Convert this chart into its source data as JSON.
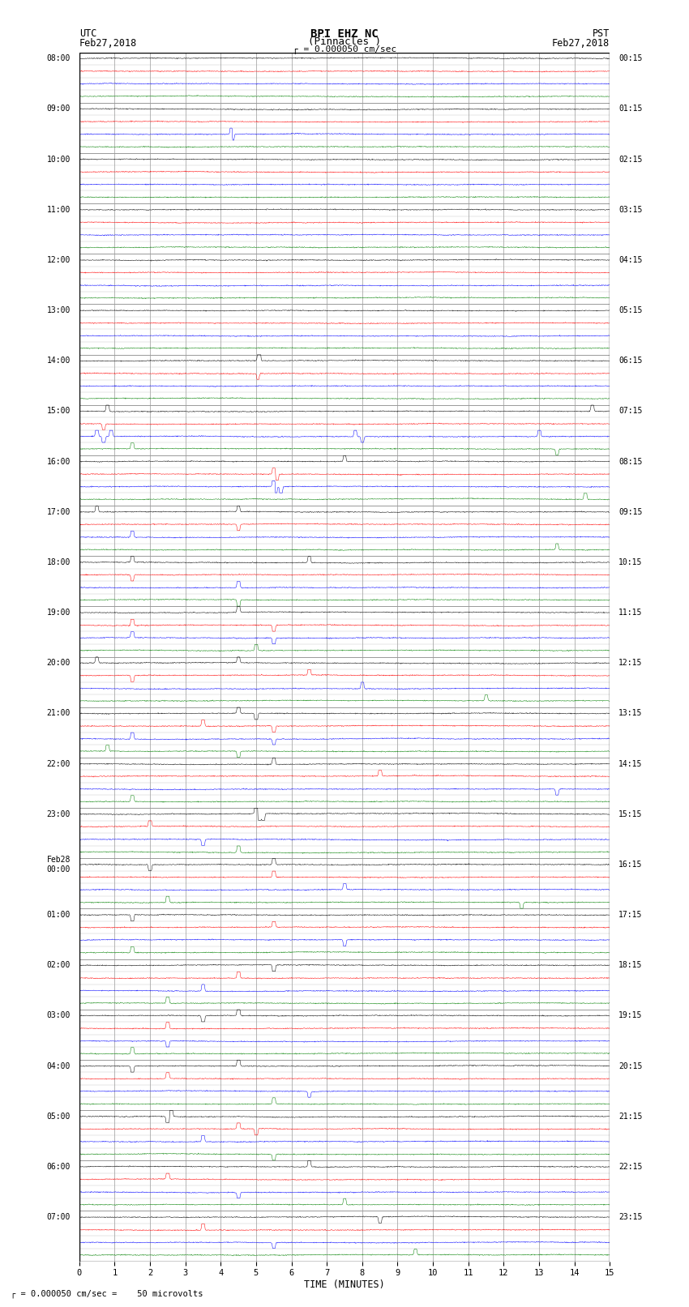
{
  "title_line1": "BPI EHZ NC",
  "title_line2": "(Pinnacles )",
  "scale_text": "= 0.000050 cm/sec",
  "left_label_top": "UTC",
  "left_label_date": "Feb27,2018",
  "right_label_top": "PST",
  "right_label_date": "Feb27,2018",
  "xlabel": "TIME (MINUTES)",
  "footnote": "= 0.000050 cm/sec =    50 microvolts",
  "utc_labels": [
    "08:00",
    "09:00",
    "10:00",
    "11:00",
    "12:00",
    "13:00",
    "14:00",
    "15:00",
    "16:00",
    "17:00",
    "18:00",
    "19:00",
    "20:00",
    "21:00",
    "22:00",
    "23:00",
    "Feb28\n00:00",
    "01:00",
    "02:00",
    "03:00",
    "04:00",
    "05:00",
    "06:00",
    "07:00"
  ],
  "pst_labels": [
    "00:15",
    "01:15",
    "02:15",
    "03:15",
    "04:15",
    "05:15",
    "06:15",
    "07:15",
    "08:15",
    "09:15",
    "10:15",
    "11:15",
    "12:15",
    "13:15",
    "14:15",
    "15:15",
    "16:15",
    "17:15",
    "18:15",
    "19:15",
    "20:15",
    "21:15",
    "22:15",
    "23:15"
  ],
  "trace_colors": [
    "black",
    "red",
    "blue",
    "green"
  ],
  "n_rows": 96,
  "n_minutes": 15,
  "samples_per_minute": 100,
  "noise_amp": 0.06,
  "bg_color": "#ffffff",
  "grid_color": "#999999",
  "trace_lw": 0.35,
  "x_ticks": [
    0,
    1,
    2,
    3,
    4,
    5,
    6,
    7,
    8,
    9,
    10,
    11,
    12,
    13,
    14,
    15
  ]
}
